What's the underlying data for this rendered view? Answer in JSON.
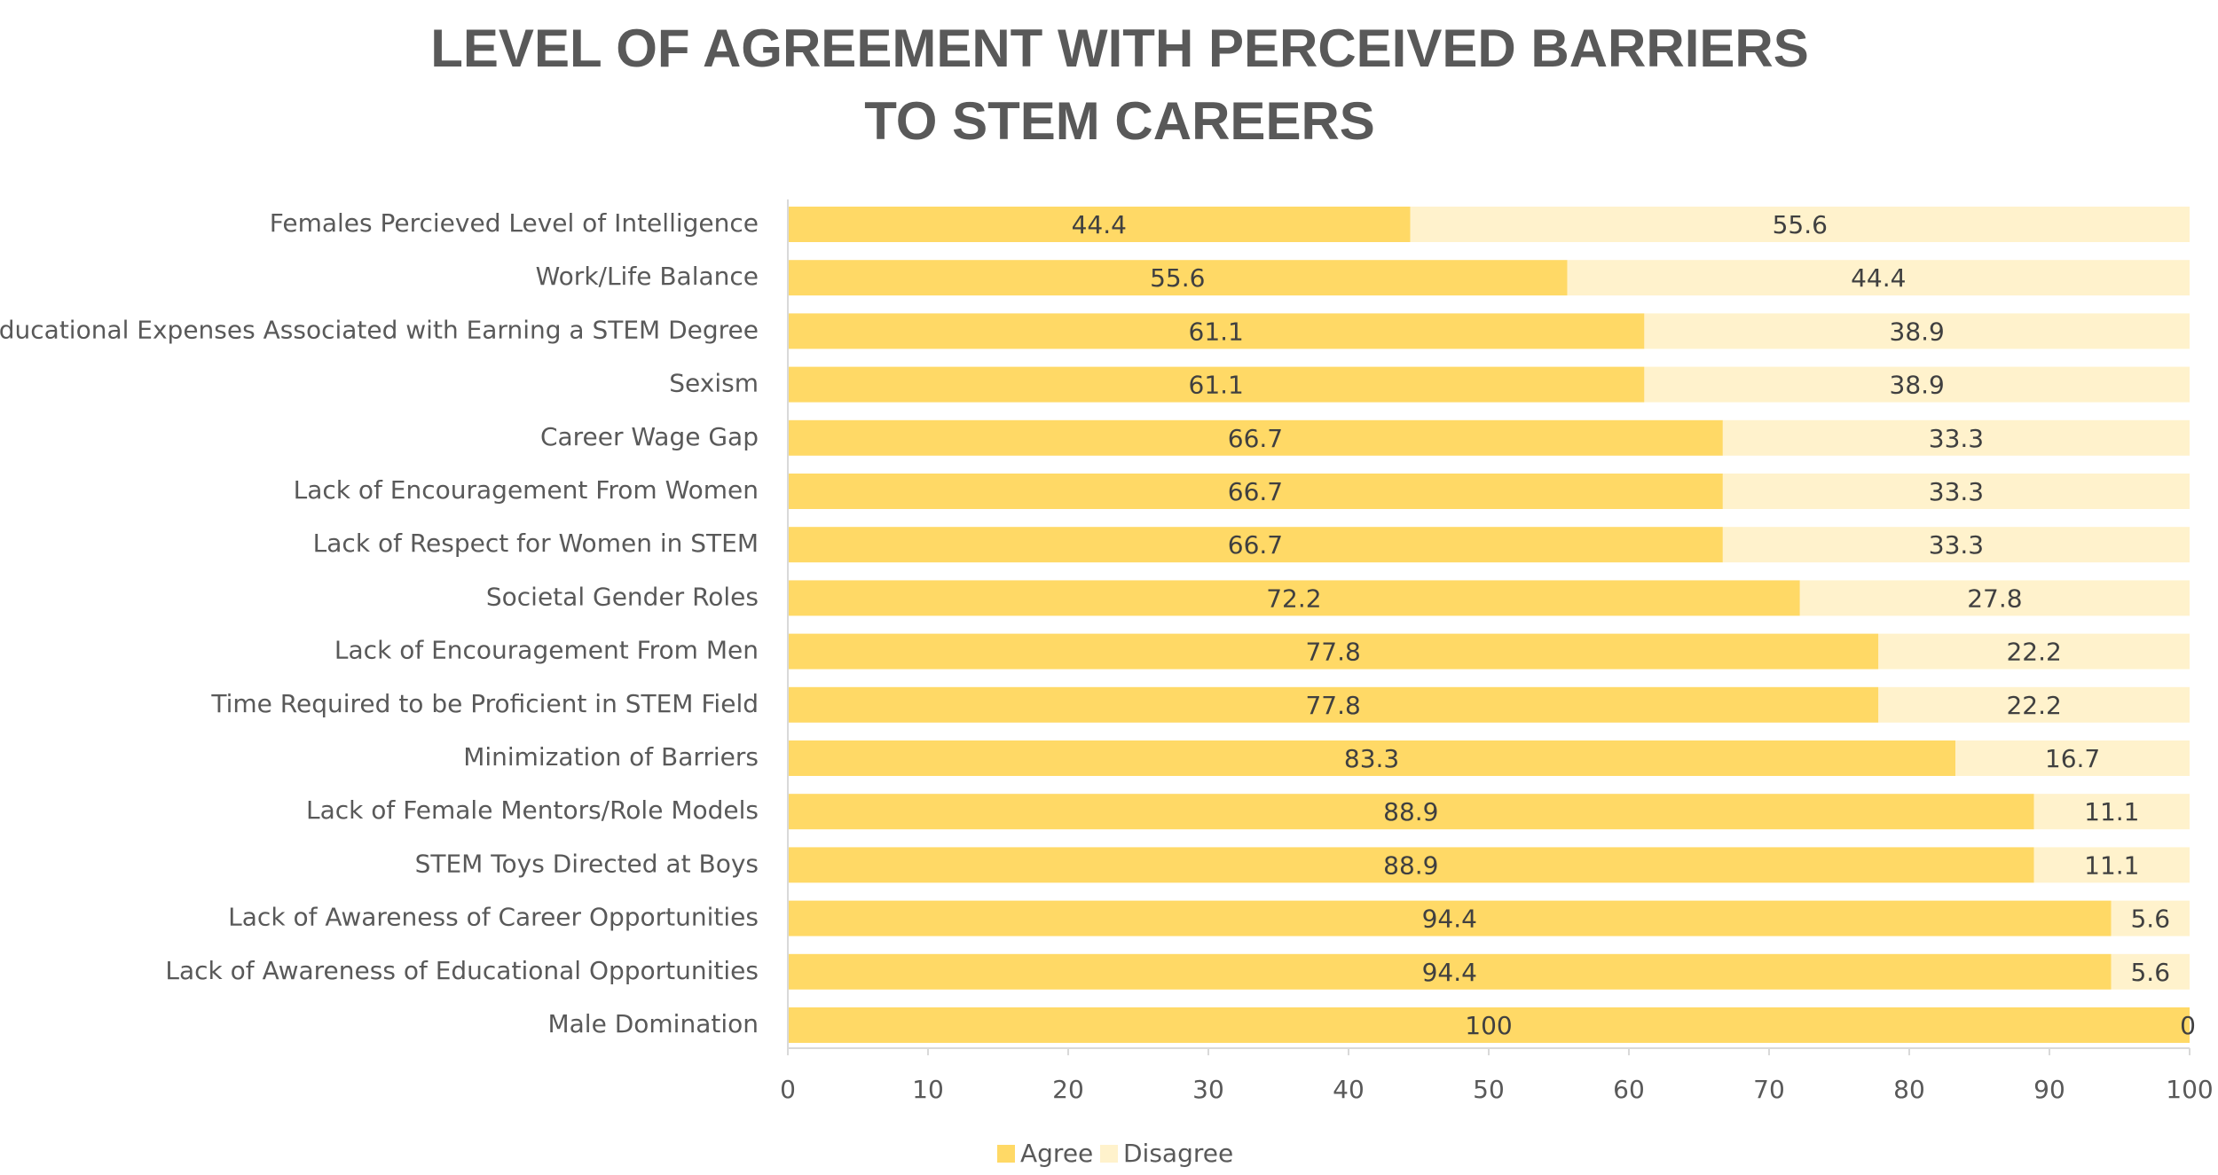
{
  "chart_data": {
    "type": "bar",
    "orientation": "horizontal",
    "stacked": true,
    "title_lines": [
      "LEVEL OF AGREEMENT WITH PERCEIVED BARRIERS",
      "TO STEM CAREERS"
    ],
    "categories": [
      "Females Percieved Level of Intelligence",
      "Work/Life Balance",
      "Educational Expenses Associated with Earning a STEM Degree",
      "Sexism",
      "Career Wage Gap",
      "Lack of Encouragement From Women",
      "Lack of Respect for Women in STEM",
      "Societal Gender Roles",
      "Lack of Encouragement From Men",
      "Time Required to be Proficient in STEM Field",
      "Minimization of Barriers",
      "Lack of Female Mentors/Role Models",
      "STEM Toys Directed at Boys",
      "Lack of Awareness of Career Opportunities",
      "Lack of Awareness of Educational Opportunities",
      "Male Domination"
    ],
    "series": [
      {
        "name": "Agree",
        "color": "#FFD966",
        "values": [
          44.4,
          55.6,
          61.1,
          61.1,
          66.7,
          66.7,
          66.7,
          72.2,
          77.8,
          77.8,
          83.3,
          88.9,
          88.9,
          94.4,
          94.4,
          100
        ],
        "labels": [
          "44.4",
          "55.6",
          "61.1",
          "61.1",
          "66.7",
          "66.7",
          "66.7",
          "72.2",
          "77.8",
          "77.8",
          "83.3",
          "88.9",
          "88.9",
          "94.4",
          "94.4",
          "100"
        ]
      },
      {
        "name": "Disagree",
        "color": "#FFF2CC",
        "values": [
          55.6,
          44.4,
          38.9,
          38.9,
          33.3,
          33.3,
          33.3,
          27.8,
          22.2,
          22.2,
          16.7,
          11.1,
          11.1,
          5.6,
          5.6,
          0
        ],
        "labels": [
          "55.6",
          "44.4",
          "38.9",
          "38.9",
          "33.3",
          "33.3",
          "33.3",
          "27.8",
          "22.2",
          "22.2",
          "16.7",
          "11.1",
          "11.1",
          "5.6",
          "5.6",
          "0"
        ]
      }
    ],
    "xlim": [
      0,
      100
    ],
    "xticks": [
      0,
      10,
      20,
      30,
      40,
      50,
      60,
      70,
      80,
      90,
      100
    ],
    "xtick_labels": [
      "0",
      "10",
      "20",
      "30",
      "40",
      "50",
      "60",
      "70",
      "80",
      "90",
      "100"
    ],
    "xlabel": "",
    "ylabel": "",
    "grid": false,
    "legend_position": "bottom"
  }
}
